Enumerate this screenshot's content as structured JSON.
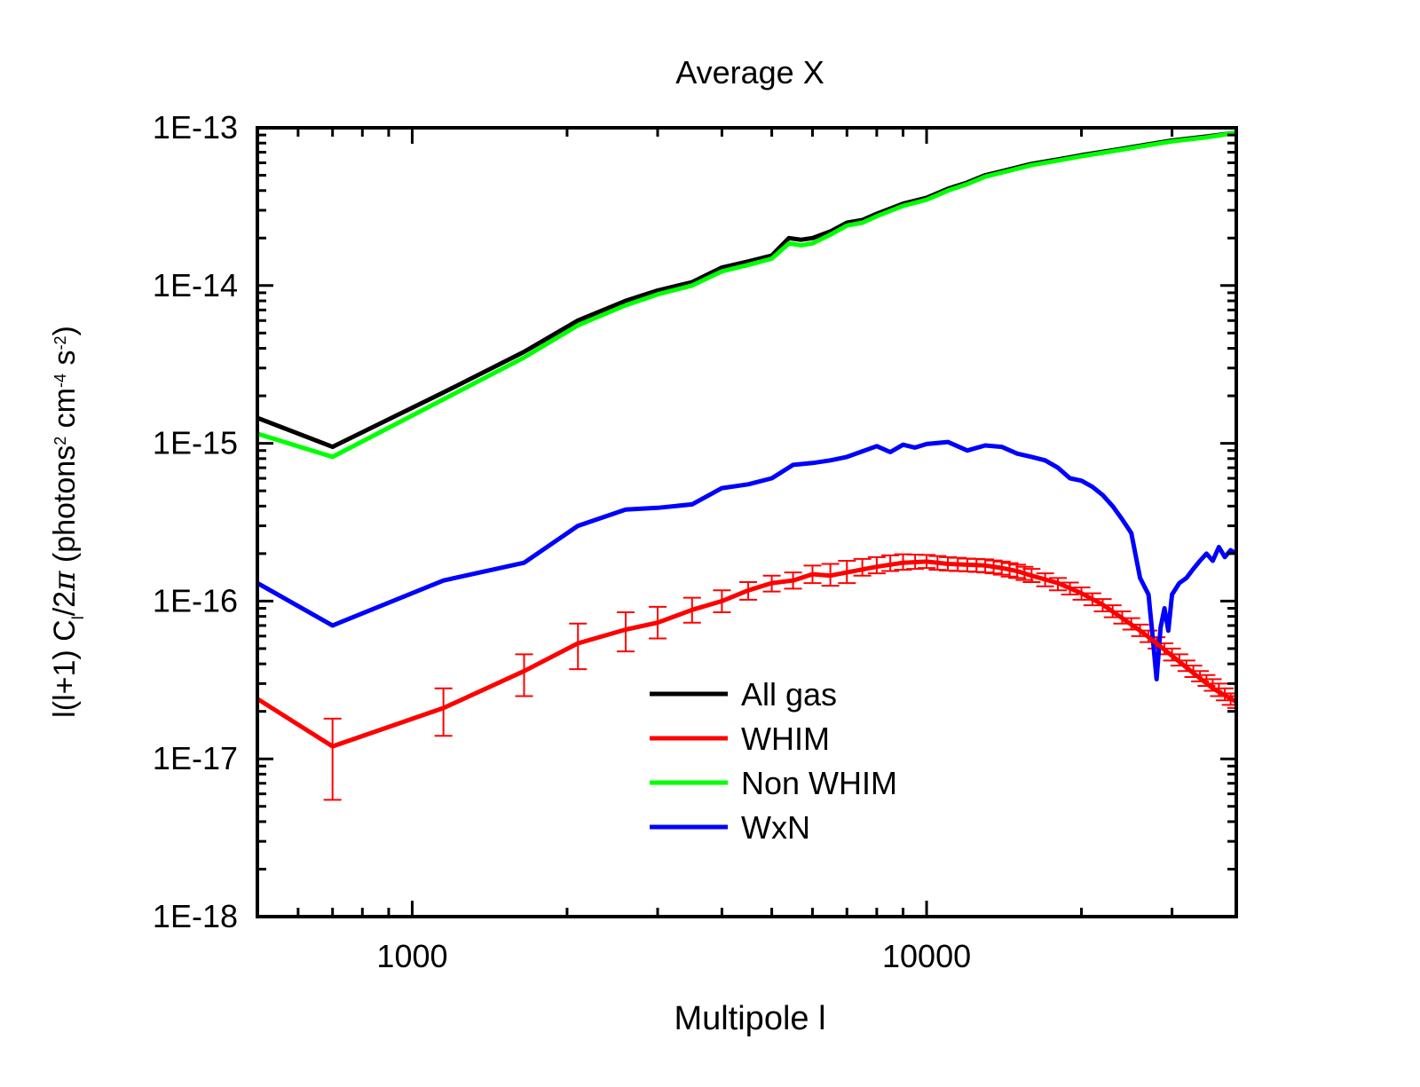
{
  "chart_data": {
    "type": "line",
    "title": "Average X",
    "xlabel": "Multipole l",
    "ylabel": "l(l+1) C_l/2π (photons² cm⁻⁴ s⁻²)",
    "ylabel_parts": {
      "a": "l(l+1) C",
      "sub": "l",
      "b": "/2",
      "pi": "π",
      "c": " (photons",
      "sup1": "2",
      "d": " cm",
      "sup2": "-4",
      "e": " s",
      "sup3": "-2",
      "f": ")"
    },
    "x_scale": "log",
    "y_scale": "log",
    "xlim": [
      500,
      40000
    ],
    "ylim": [
      1e-18,
      1e-13
    ],
    "x_ticks": [
      {
        "value": 1000,
        "label": "1000"
      },
      {
        "value": 10000,
        "label": "10000"
      }
    ],
    "y_ticks": [
      {
        "value": 1e-13,
        "label": "1E-13"
      },
      {
        "value": 1e-14,
        "label": "1E-14"
      },
      {
        "value": 1e-15,
        "label": "1E-15"
      },
      {
        "value": 1e-16,
        "label": "1E-16"
      },
      {
        "value": 1e-17,
        "label": "1E-17"
      },
      {
        "value": 1e-18,
        "label": "1E-18"
      }
    ],
    "legend_position": "lower-center",
    "series": [
      {
        "name": "All gas",
        "color": "#000000",
        "x": [
          500,
          700,
          1150,
          1650,
          2100,
          2600,
          3000,
          3500,
          4000,
          4500,
          5000,
          5400,
          5700,
          6000,
          6500,
          7000,
          7500,
          8000,
          9000,
          10000,
          11000,
          12000,
          13000,
          14000,
          16000,
          18000,
          20000,
          23000,
          26000,
          30000,
          35000,
          40000
        ],
        "y": [
          1.45e-15,
          9.5e-16,
          2.1e-15,
          3.8e-15,
          6e-15,
          8e-15,
          9.3e-15,
          1.05e-14,
          1.3e-14,
          1.42e-14,
          1.55e-14,
          2e-14,
          1.95e-14,
          2e-14,
          2.2e-14,
          2.5e-14,
          2.6e-14,
          2.85e-14,
          3.3e-14,
          3.6e-14,
          4.1e-14,
          4.5e-14,
          5e-14,
          5.3e-14,
          5.9e-14,
          6.3e-14,
          6.7e-14,
          7.2e-14,
          7.7e-14,
          8.3e-14,
          8.8e-14,
          9.3e-14
        ]
      },
      {
        "name": "WHIM",
        "color": "#ff0000",
        "x": [
          500,
          700,
          1150,
          1650,
          2100,
          2600,
          3000,
          3500,
          4000,
          4500,
          5000,
          5500,
          6000,
          6500,
          7000,
          8000,
          9000,
          10000,
          11000,
          12000,
          13000,
          14000,
          15000,
          16000,
          18000,
          20000,
          22000,
          24000,
          26000,
          28000,
          30000,
          33000,
          36000,
          40000
        ],
        "y": [
          2.4e-17,
          1.2e-17,
          2.1e-17,
          3.6e-17,
          5.4e-17,
          6.6e-17,
          7.3e-17,
          8.8e-17,
          1e-16,
          1.17e-16,
          1.3e-16,
          1.35e-16,
          1.48e-16,
          1.45e-16,
          1.52e-16,
          1.65e-16,
          1.75e-16,
          1.78e-16,
          1.72e-16,
          1.7e-16,
          1.68e-16,
          1.62e-16,
          1.55e-16,
          1.45e-16,
          1.3e-16,
          1.12e-16,
          9.5e-17,
          7.8e-17,
          6.5e-17,
          5.4e-17,
          4.5e-17,
          3.5e-17,
          2.8e-17,
          2.3e-17
        ]
      },
      {
        "name": "Non WHIM",
        "color": "#00ff00",
        "x": [
          500,
          700,
          1150,
          1650,
          2100,
          2600,
          3000,
          3500,
          4000,
          4500,
          5000,
          5400,
          5700,
          6000,
          6500,
          7000,
          7500,
          8000,
          9000,
          10000,
          11000,
          12000,
          13000,
          14000,
          16000,
          18000,
          20000,
          23000,
          26000,
          30000,
          35000,
          40000
        ],
        "y": [
          1.15e-15,
          8.2e-16,
          1.9e-15,
          3.5e-15,
          5.6e-15,
          7.5e-15,
          8.8e-15,
          1e-14,
          1.23e-14,
          1.35e-14,
          1.48e-14,
          1.85e-14,
          1.8e-14,
          1.85e-14,
          2.1e-14,
          2.4e-14,
          2.5e-14,
          2.75e-14,
          3.2e-14,
          3.5e-14,
          4e-14,
          4.4e-14,
          4.9e-14,
          5.2e-14,
          5.8e-14,
          6.2e-14,
          6.6e-14,
          7.1e-14,
          7.6e-14,
          8.2e-14,
          8.7e-14,
          9.3e-14
        ]
      },
      {
        "name": "WxN",
        "color": "#0000ff",
        "x": [
          500,
          700,
          1150,
          1650,
          2100,
          2600,
          3000,
          3500,
          4000,
          4500,
          5000,
          5500,
          6000,
          6500,
          7000,
          8000,
          8500,
          9000,
          9500,
          10000,
          11000,
          12000,
          13000,
          14000,
          15000,
          16000,
          17000,
          18000,
          19000,
          20000,
          21000,
          22000,
          23000,
          24000,
          25000,
          26000,
          27000,
          27500,
          28000,
          28500,
          29000,
          29500,
          30000,
          31000,
          32000,
          33000,
          34000,
          35000,
          36000,
          37000,
          38000,
          39000,
          40000
        ],
        "y": [
          1.3e-16,
          7e-17,
          1.35e-16,
          1.75e-16,
          3e-16,
          3.8e-16,
          3.9e-16,
          4.1e-16,
          5.2e-16,
          5.5e-16,
          6e-16,
          7.3e-16,
          7.5e-16,
          7.8e-16,
          8.2e-16,
          9.6e-16,
          8.8e-16,
          9.8e-16,
          9.4e-16,
          9.9e-16,
          1.02e-15,
          9e-16,
          9.7e-16,
          9.5e-16,
          8.6e-16,
          8.2e-16,
          7.8e-16,
          7e-16,
          6e-16,
          5.8e-16,
          5.3e-16,
          4.7e-16,
          4e-16,
          3.3e-16,
          2.7e-16,
          1.4e-16,
          1.1e-16,
          6e-17,
          3.2e-17,
          6.8e-17,
          9e-17,
          6.5e-17,
          1.1e-16,
          1.3e-16,
          1.4e-16,
          1.6e-16,
          1.8e-16,
          2e-16,
          1.8e-16,
          2.2e-16,
          1.9e-16,
          2.1e-16,
          2e-16
        ]
      }
    ],
    "error_bars": {
      "series": "WHIM",
      "x": [
        700,
        1150,
        1650,
        2100,
        2600,
        3000,
        3500,
        4000,
        4500,
        5000,
        5500,
        6000,
        6500,
        7000,
        7500,
        8000,
        8500,
        9000,
        9500,
        10000,
        10500,
        11000,
        11500,
        12000,
        12500,
        13000,
        13500,
        14000,
        14500,
        15000,
        15500,
        16000,
        17000,
        18000,
        19000,
        20000,
        21000,
        22000,
        23000,
        24000,
        25000,
        26000,
        27000,
        28000,
        29000,
        30000,
        31000,
        32000,
        33000,
        34000,
        35000,
        36000,
        37000,
        38000,
        39000,
        40000
      ],
      "lower": [
        5.5e-18,
        1.4e-17,
        2.5e-17,
        3.7e-17,
        4.8e-17,
        5.8e-17,
        7.3e-17,
        8.5e-17,
        1.02e-16,
        1.15e-16,
        1.2e-16,
        1.3e-16,
        1.25e-16,
        1.3e-16,
        1.45e-16,
        1.5e-16,
        1.55e-16,
        1.58e-16,
        1.6e-16,
        1.62e-16,
        1.58e-16,
        1.56e-16,
        1.55e-16,
        1.54e-16,
        1.53e-16,
        1.52e-16,
        1.5e-16,
        1.47e-16,
        1.43e-16,
        1.4e-16,
        1.36e-16,
        1.32e-16,
        1.24e-16,
        1.17e-16,
        1.1e-16,
        1.02e-16,
        9.4e-17,
        8.6e-17,
        7.9e-17,
        7.2e-17,
        6.6e-17,
        6e-17,
        5.5e-17,
        5e-17,
        4.6e-17,
        4.2e-17,
        3.9e-17,
        3.6e-17,
        3.3e-17,
        3.1e-17,
        2.9e-17,
        2.7e-17,
        2.5e-17,
        2.35e-17,
        2.2e-17,
        2.1e-17
      ],
      "upper": [
        1.8e-17,
        2.8e-17,
        4.6e-17,
        7.2e-17,
        8.5e-17,
        9.2e-17,
        1.05e-16,
        1.17e-16,
        1.32e-16,
        1.45e-16,
        1.52e-16,
        1.68e-16,
        1.72e-16,
        1.8e-16,
        1.85e-16,
        1.9e-16,
        1.95e-16,
        1.98e-16,
        1.97e-16,
        1.96e-16,
        1.93e-16,
        1.9e-16,
        1.88e-16,
        1.86e-16,
        1.85e-16,
        1.84e-16,
        1.81e-16,
        1.78e-16,
        1.74e-16,
        1.7e-16,
        1.65e-16,
        1.6e-16,
        1.5e-16,
        1.4e-16,
        1.31e-16,
        1.22e-16,
        1.12e-16,
        1.03e-16,
        9.4e-17,
        8.6e-17,
        7.8e-17,
        7.1e-17,
        6.5e-17,
        5.9e-17,
        5.4e-17,
        5e-17,
        4.6e-17,
        4.2e-17,
        3.9e-17,
        3.6e-17,
        3.4e-17,
        3.2e-17,
        3e-17,
        2.8e-17,
        2.6e-17,
        2.5e-17
      ]
    }
  }
}
